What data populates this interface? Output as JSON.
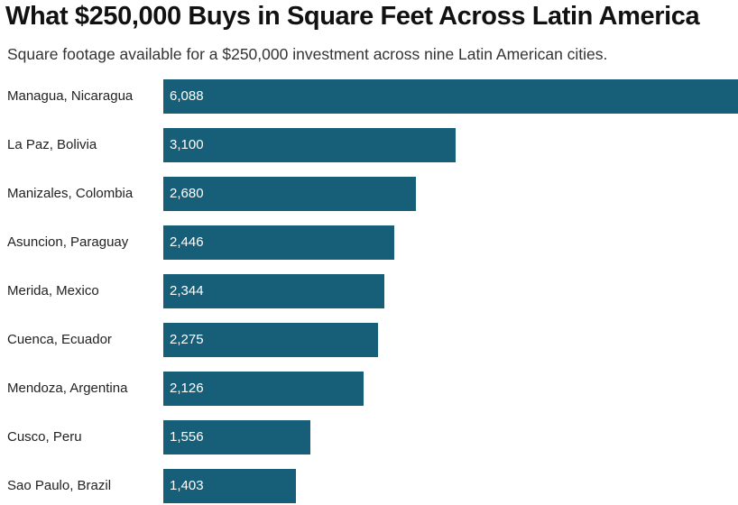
{
  "chart_data": {
    "type": "bar",
    "orientation": "horizontal",
    "title": "What $250,000 Buys in Square Feet Across Latin America",
    "subtitle": "Square footage available for a $250,000 investment across nine Latin American cities.",
    "categories": [
      "Managua, Nicaragua",
      "La Paz, Bolivia",
      "Manizales, Colombia",
      "Asuncion, Paraguay",
      "Merida, Mexico",
      "Cuenca, Ecuador",
      "Mendoza, Argentina",
      "Cusco, Peru",
      "Sao Paulo, Brazil"
    ],
    "values": [
      6088,
      3100,
      2680,
      2446,
      2344,
      2275,
      2126,
      1556,
      1403
    ],
    "value_labels": [
      "6,088",
      "3,100",
      "2,680",
      "2,446",
      "2,344",
      "2,275",
      "2,126",
      "1,556",
      "1,403"
    ],
    "xlim": [
      0,
      6088
    ],
    "bar_color": "#175f79"
  }
}
